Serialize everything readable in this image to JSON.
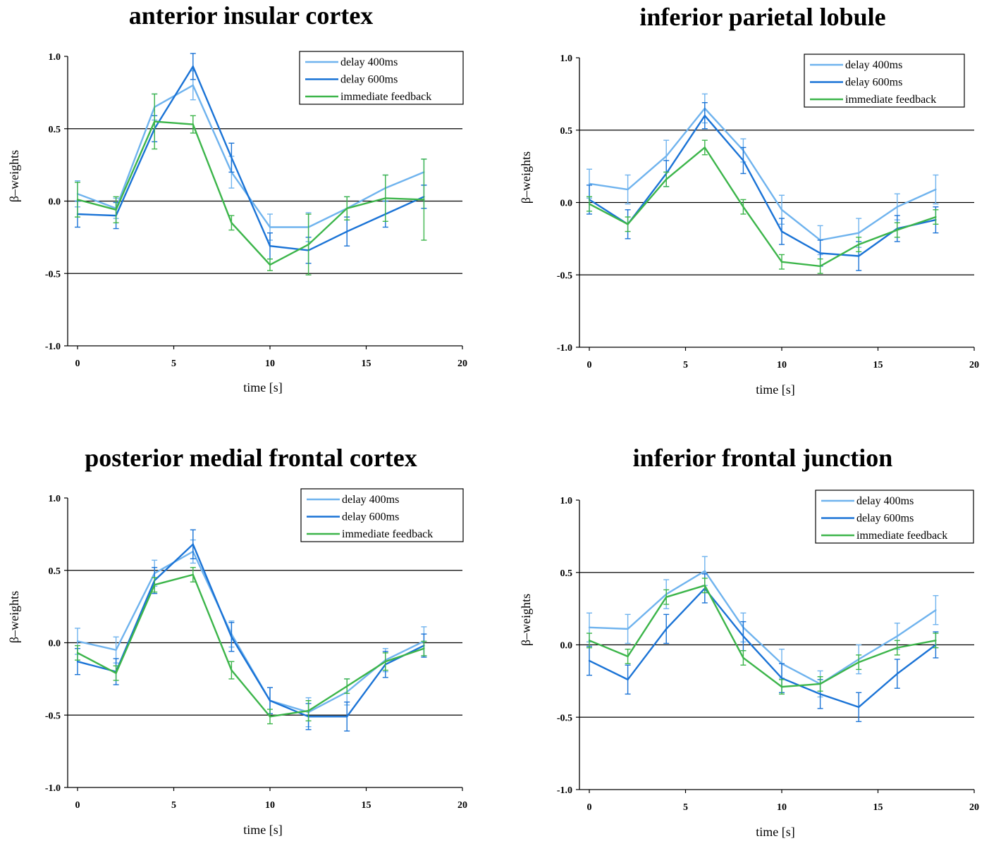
{
  "figure": {
    "colors": {
      "delay 400ms": "#6fb3ee",
      "delay 600ms": "#1a73d6",
      "immediate feedback": "#3cb54a",
      "axis": "#000000",
      "refline": "#000000"
    }
  },
  "chart_data": [
    {
      "type": "line",
      "title": "anterior insular cortex",
      "xlabel": "time [s]",
      "ylabel": "β–weights",
      "xlim": [
        0,
        20
      ],
      "ylim": [
        -1.0,
        1.0
      ],
      "xticks": [
        "0",
        "5",
        "10",
        "15",
        "20"
      ],
      "yticks": [
        "1.0",
        "0.5",
        "0.0",
        "-0.5",
        "-1.0"
      ],
      "reference_lines": [
        0.5,
        0.0,
        -0.5
      ],
      "legend_position": "top-right",
      "x": [
        0,
        2,
        4,
        6,
        8,
        10,
        12,
        14,
        16,
        18
      ],
      "series": [
        {
          "name": "delay 400ms",
          "values": [
            0.05,
            -0.05,
            0.65,
            0.8,
            0.2,
            -0.18,
            -0.18,
            -0.05,
            0.09,
            0.2
          ],
          "errors": [
            0.09,
            0.07,
            0.09,
            0.1,
            0.11,
            0.09,
            0.1,
            0.08,
            0.09,
            0.09
          ]
        },
        {
          "name": "delay 600ms",
          "values": [
            -0.09,
            -0.1,
            0.5,
            0.93,
            0.3,
            -0.31,
            -0.34,
            -0.21,
            -0.09,
            0.03
          ],
          "errors": [
            0.09,
            0.09,
            0.09,
            0.09,
            0.1,
            0.09,
            0.09,
            0.1,
            0.09,
            0.08
          ]
        },
        {
          "name": "immediate feedback",
          "values": [
            0.01,
            -0.06,
            0.55,
            0.53,
            -0.15,
            -0.44,
            -0.3,
            -0.05,
            0.02,
            0.01
          ],
          "errors": [
            0.12,
            0.09,
            0.19,
            0.06,
            0.05,
            0.04,
            0.21,
            0.08,
            0.16,
            0.28
          ]
        }
      ]
    },
    {
      "type": "line",
      "title": "inferior parietal lobule",
      "xlabel": "time [s]",
      "ylabel": "β–weights",
      "xlim": [
        0,
        20
      ],
      "ylim": [
        -1.0,
        1.0
      ],
      "xticks": [
        "0",
        "5",
        "10",
        "15",
        "20"
      ],
      "yticks": [
        "1.0",
        "0.5",
        "0.0",
        "-0.5",
        "-1.0"
      ],
      "reference_lines": [
        0.5,
        0.0,
        -0.5
      ],
      "legend_position": "top-right",
      "x": [
        0,
        2,
        4,
        6,
        8,
        10,
        12,
        14,
        16,
        18
      ],
      "series": [
        {
          "name": "delay 400ms",
          "values": [
            0.13,
            0.09,
            0.32,
            0.65,
            0.36,
            -0.05,
            -0.26,
            -0.21,
            -0.03,
            0.09
          ],
          "errors": [
            0.1,
            0.1,
            0.11,
            0.1,
            0.08,
            0.1,
            0.1,
            0.1,
            0.09,
            0.1
          ]
        },
        {
          "name": "delay 600ms",
          "values": [
            0.02,
            -0.15,
            0.2,
            0.6,
            0.29,
            -0.2,
            -0.35,
            -0.37,
            -0.18,
            -0.12
          ],
          "errors": [
            0.1,
            0.1,
            0.09,
            0.09,
            0.09,
            0.09,
            0.09,
            0.1,
            0.09,
            0.09
          ]
        },
        {
          "name": "immediate feedback",
          "values": [
            -0.01,
            -0.15,
            0.16,
            0.38,
            -0.03,
            -0.41,
            -0.44,
            -0.29,
            -0.19,
            -0.1
          ],
          "errors": [
            0.05,
            0.05,
            0.05,
            0.05,
            0.05,
            0.05,
            0.05,
            0.05,
            0.05,
            0.05
          ]
        }
      ]
    },
    {
      "type": "line",
      "title": "posterior medial frontal cortex",
      "xlabel": "time [s]",
      "ylabel": "β–weights",
      "xlim": [
        0,
        20
      ],
      "ylim": [
        -1.0,
        1.0
      ],
      "xticks": [
        "0",
        "5",
        "10",
        "15",
        "20"
      ],
      "yticks": [
        "1.0",
        "0.5",
        "0.0",
        "-0.5",
        "-1.0"
      ],
      "reference_lines": [
        0.5,
        0.0,
        -0.5
      ],
      "legend_position": "top-right",
      "x": [
        0,
        2,
        4,
        6,
        8,
        10,
        12,
        14,
        16,
        18
      ],
      "series": [
        {
          "name": "delay 400ms",
          "values": [
            0.01,
            -0.05,
            0.48,
            0.63,
            0.06,
            -0.4,
            -0.48,
            -0.34,
            -0.12,
            0.01
          ],
          "errors": [
            0.09,
            0.09,
            0.09,
            0.08,
            0.09,
            0.09,
            0.1,
            0.09,
            0.08,
            0.1
          ]
        },
        {
          "name": "delay 600ms",
          "values": [
            -0.13,
            -0.2,
            0.43,
            0.68,
            0.04,
            -0.4,
            -0.51,
            -0.51,
            -0.15,
            -0.02
          ],
          "errors": [
            0.09,
            0.09,
            0.09,
            0.1,
            0.1,
            0.09,
            0.09,
            0.1,
            0.09,
            0.08
          ]
        },
        {
          "name": "immediate feedback",
          "values": [
            -0.07,
            -0.21,
            0.4,
            0.47,
            -0.19,
            -0.51,
            -0.47,
            -0.3,
            -0.13,
            -0.04
          ],
          "errors": [
            0.05,
            0.05,
            0.05,
            0.05,
            0.06,
            0.05,
            0.07,
            0.05,
            0.06,
            0.05
          ]
        }
      ]
    },
    {
      "type": "line",
      "title": "inferior frontal junction",
      "xlabel": "time [s]",
      "ylabel": "β–weights",
      "xlim": [
        0,
        20
      ],
      "ylim": [
        -1.0,
        1.0
      ],
      "xticks": [
        "0",
        "5",
        "10",
        "15",
        "20"
      ],
      "yticks": [
        "1.0",
        "0.5",
        "0.0",
        "-0.5",
        "-1.0"
      ],
      "reference_lines": [
        0.5,
        0.0,
        -0.5
      ],
      "legend_position": "top-right",
      "x": [
        0,
        2,
        4,
        6,
        8,
        10,
        12,
        14,
        16,
        18
      ],
      "series": [
        {
          "name": "delay 400ms",
          "values": [
            0.12,
            0.11,
            0.35,
            0.51,
            0.12,
            -0.13,
            -0.27,
            -0.1,
            0.06,
            0.24
          ],
          "errors": [
            0.1,
            0.1,
            0.1,
            0.1,
            0.1,
            0.1,
            0.09,
            0.1,
            0.09,
            0.1
          ]
        },
        {
          "name": "delay 600ms",
          "values": [
            -0.11,
            -0.24,
            0.11,
            0.39,
            0.06,
            -0.23,
            -0.34,
            -0.43,
            -0.2,
            0.0
          ],
          "errors": [
            0.1,
            0.1,
            0.1,
            0.1,
            0.1,
            0.1,
            0.1,
            0.1,
            0.1,
            0.09
          ]
        },
        {
          "name": "immediate feedback",
          "values": [
            0.03,
            -0.08,
            0.33,
            0.41,
            -0.09,
            -0.29,
            -0.27,
            -0.12,
            -0.02,
            0.03
          ],
          "errors": [
            0.05,
            0.05,
            0.05,
            0.05,
            0.05,
            0.05,
            0.05,
            0.05,
            0.05,
            0.05
          ]
        }
      ]
    }
  ]
}
